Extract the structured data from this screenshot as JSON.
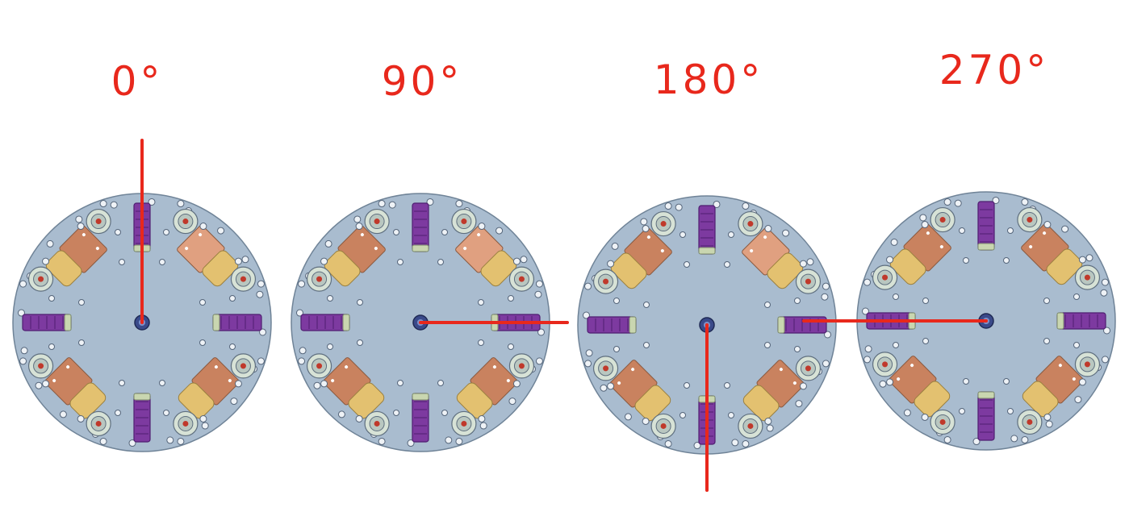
{
  "figure": {
    "panels": [
      {
        "label": "0°",
        "angle_deg": 0
      },
      {
        "label": "90°",
        "angle_deg": 90
      },
      {
        "label": "180°",
        "angle_deg": 180
      },
      {
        "label": "270°",
        "angle_deg": 270
      }
    ],
    "colors": {
      "annotation": "#e8281c",
      "plate": "#a9bccf",
      "plate_edge": "#6f8397",
      "copper_pad": "#c9825f",
      "yellow_pad": "#e3c170",
      "wheel": "#7d3aa0",
      "wheel_dark": "#4f1d70",
      "wheel_end": "#c9d6b0",
      "bearing_ring": "#d7e2d6",
      "bearing_core": "#c0392b",
      "screw": "#eef2f6"
    }
  }
}
